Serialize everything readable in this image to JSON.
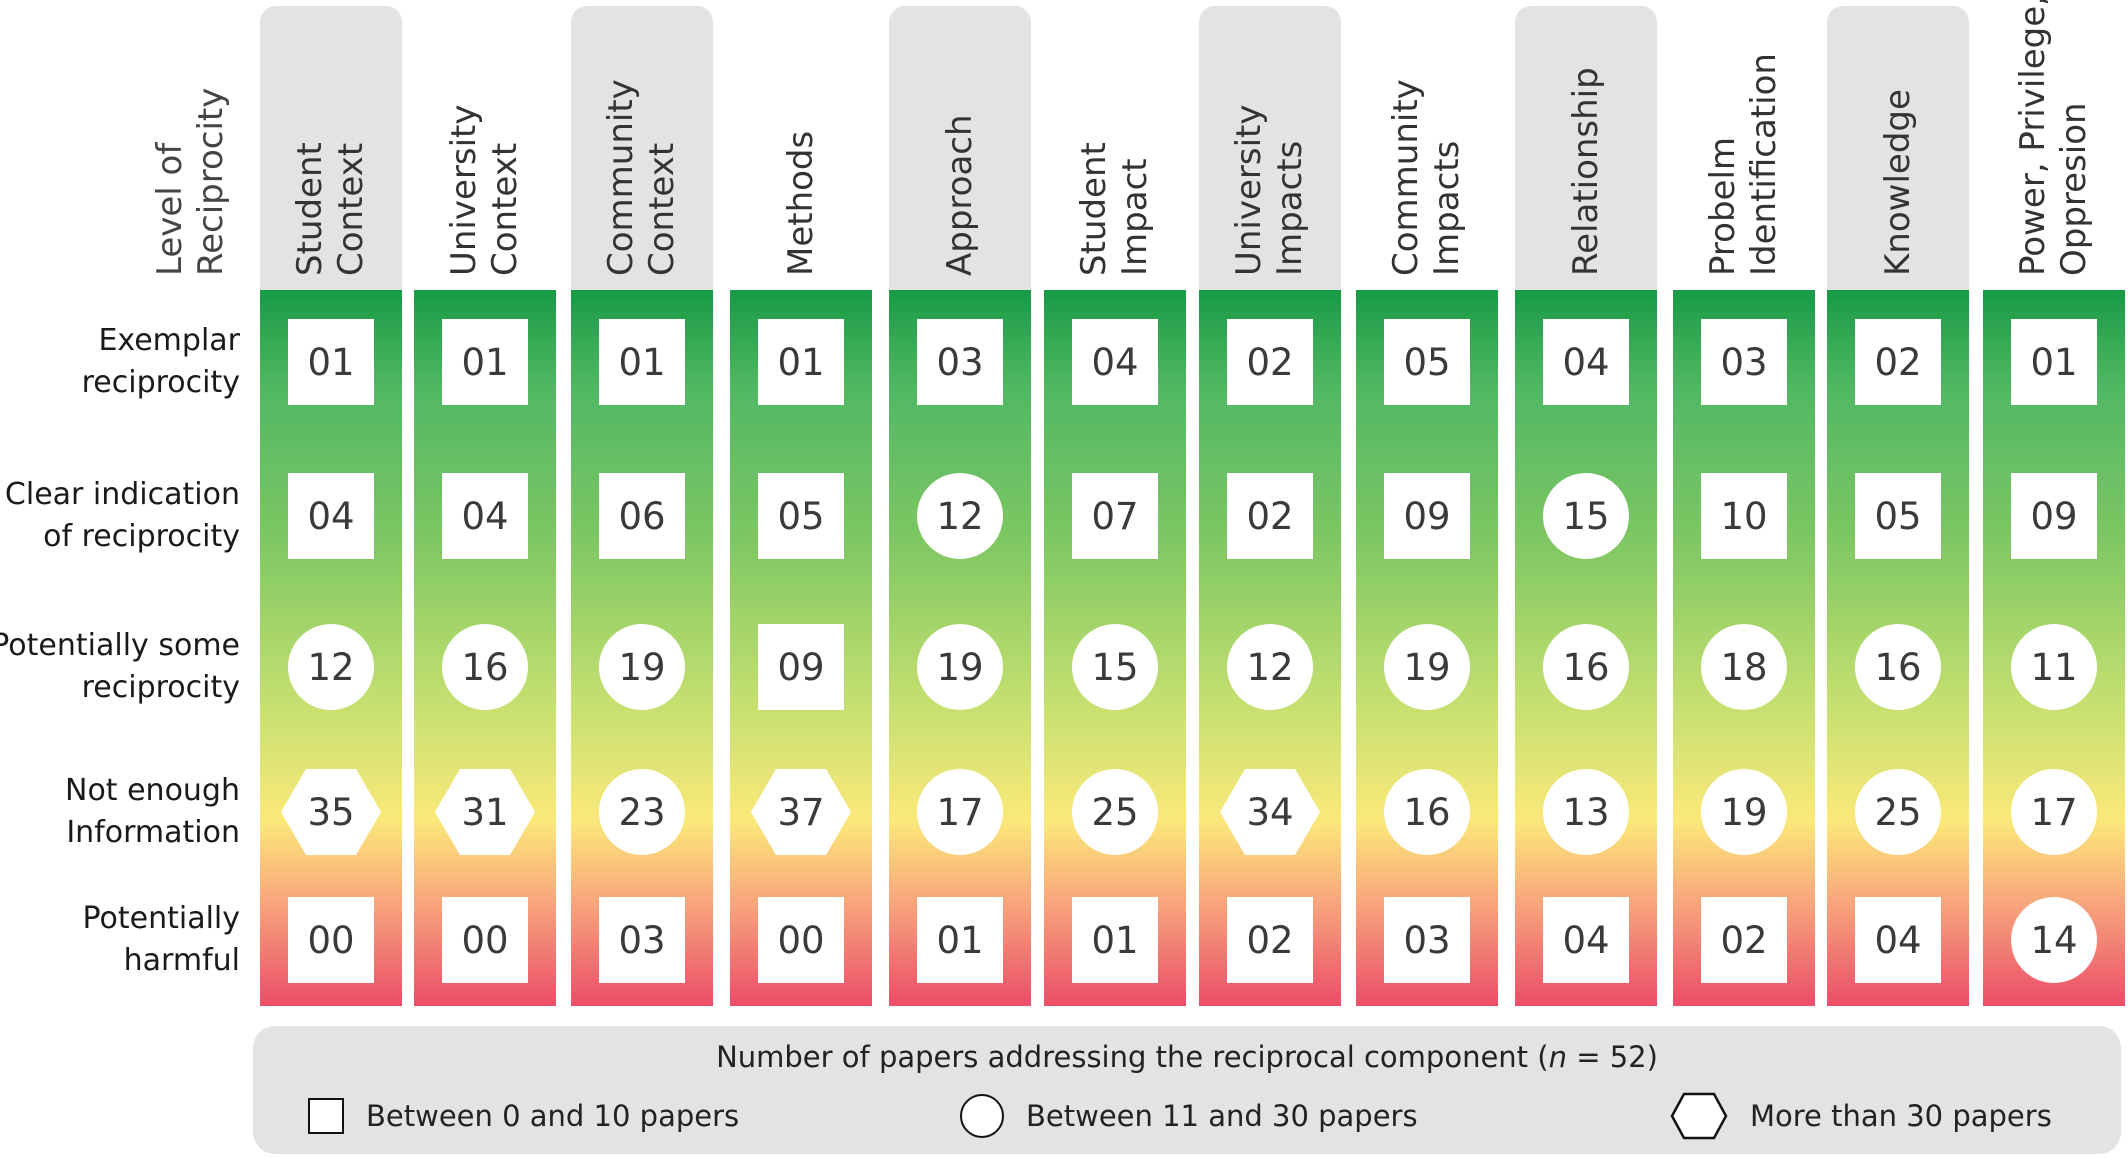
{
  "level_header": "Level of\nReciprocity",
  "columns": [
    {
      "header": "Student\nContext",
      "tab": true,
      "cells": [
        {
          "value": "01",
          "shape": "square"
        },
        {
          "value": "04",
          "shape": "square"
        },
        {
          "value": "12",
          "shape": "circle"
        },
        {
          "value": "35",
          "shape": "hexagon"
        },
        {
          "value": "00",
          "shape": "square"
        }
      ]
    },
    {
      "header": "University\nContext",
      "tab": false,
      "cells": [
        {
          "value": "01",
          "shape": "square"
        },
        {
          "value": "04",
          "shape": "square"
        },
        {
          "value": "16",
          "shape": "circle"
        },
        {
          "value": "31",
          "shape": "hexagon"
        },
        {
          "value": "00",
          "shape": "square"
        }
      ]
    },
    {
      "header": "Community\nContext",
      "tab": true,
      "cells": [
        {
          "value": "01",
          "shape": "square"
        },
        {
          "value": "06",
          "shape": "square"
        },
        {
          "value": "19",
          "shape": "circle"
        },
        {
          "value": "23",
          "shape": "circle"
        },
        {
          "value": "03",
          "shape": "square"
        }
      ]
    },
    {
      "header": "Methods",
      "tab": false,
      "cells": [
        {
          "value": "01",
          "shape": "square"
        },
        {
          "value": "05",
          "shape": "square"
        },
        {
          "value": "09",
          "shape": "square"
        },
        {
          "value": "37",
          "shape": "hexagon"
        },
        {
          "value": "00",
          "shape": "square"
        }
      ]
    },
    {
      "header": "Approach",
      "tab": true,
      "cells": [
        {
          "value": "03",
          "shape": "square"
        },
        {
          "value": "12",
          "shape": "circle"
        },
        {
          "value": "19",
          "shape": "circle"
        },
        {
          "value": "17",
          "shape": "circle"
        },
        {
          "value": "01",
          "shape": "square"
        }
      ]
    },
    {
      "header": "Student\nImpact",
      "tab": false,
      "cells": [
        {
          "value": "04",
          "shape": "square"
        },
        {
          "value": "07",
          "shape": "square"
        },
        {
          "value": "15",
          "shape": "circle"
        },
        {
          "value": "25",
          "shape": "circle"
        },
        {
          "value": "01",
          "shape": "square"
        }
      ]
    },
    {
      "header": "University\nImpacts",
      "tab": true,
      "cells": [
        {
          "value": "02",
          "shape": "square"
        },
        {
          "value": "02",
          "shape": "square"
        },
        {
          "value": "12",
          "shape": "circle"
        },
        {
          "value": "34",
          "shape": "hexagon"
        },
        {
          "value": "02",
          "shape": "square"
        }
      ]
    },
    {
      "header": "Community\nImpacts",
      "tab": false,
      "cells": [
        {
          "value": "05",
          "shape": "square"
        },
        {
          "value": "09",
          "shape": "square"
        },
        {
          "value": "19",
          "shape": "circle"
        },
        {
          "value": "16",
          "shape": "circle"
        },
        {
          "value": "03",
          "shape": "square"
        }
      ]
    },
    {
      "header": "Relationship",
      "tab": true,
      "cells": [
        {
          "value": "04",
          "shape": "square"
        },
        {
          "value": "15",
          "shape": "circle"
        },
        {
          "value": "16",
          "shape": "circle"
        },
        {
          "value": "13",
          "shape": "circle"
        },
        {
          "value": "04",
          "shape": "square"
        }
      ]
    },
    {
      "header": "Probelm\nIdentification",
      "tab": false,
      "cells": [
        {
          "value": "03",
          "shape": "square"
        },
        {
          "value": "10",
          "shape": "square"
        },
        {
          "value": "18",
          "shape": "circle"
        },
        {
          "value": "19",
          "shape": "circle"
        },
        {
          "value": "02",
          "shape": "square"
        }
      ]
    },
    {
      "header": "Knowledge",
      "tab": true,
      "cells": [
        {
          "value": "02",
          "shape": "square"
        },
        {
          "value": "05",
          "shape": "square"
        },
        {
          "value": "16",
          "shape": "circle"
        },
        {
          "value": "25",
          "shape": "circle"
        },
        {
          "value": "04",
          "shape": "square"
        }
      ]
    },
    {
      "header": "Power, Privilege,\nOppresion",
      "tab": false,
      "cells": [
        {
          "value": "01",
          "shape": "square"
        },
        {
          "value": "09",
          "shape": "square"
        },
        {
          "value": "11",
          "shape": "circle"
        },
        {
          "value": "17",
          "shape": "circle"
        },
        {
          "value": "14",
          "shape": "circle"
        }
      ]
    }
  ],
  "rows": [
    "Exemplar\nreciprocity",
    "Clear indication\nof reciprocity",
    "Potentially some\nreciprocity",
    "Not enough\nInformation",
    "Potentially\nharmful"
  ],
  "legend": {
    "title_prefix": "Number of papers addressing the reciprocal component  (",
    "n_symbol": "n",
    "title_suffix": " = 52)",
    "items": [
      {
        "shape": "square",
        "label": "Between 0 and 10 papers"
      },
      {
        "shape": "circle",
        "label": "Between 11 and 30 papers"
      },
      {
        "shape": "hexagon",
        "label": "More than 30 papers"
      }
    ]
  }
}
